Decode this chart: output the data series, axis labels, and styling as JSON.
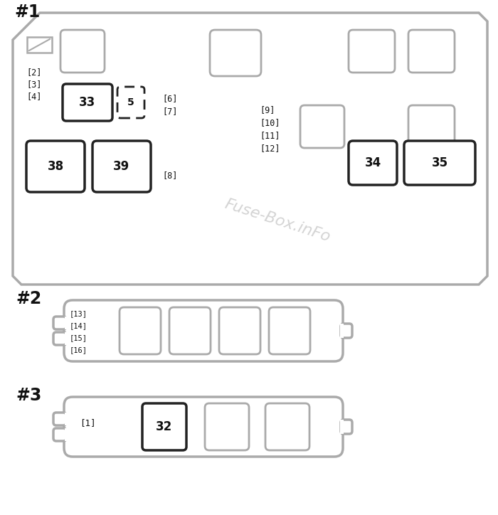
{
  "bg_color": "#ffffff",
  "outline_gray": "#aaaaaa",
  "outline_dark": "#222222",
  "text_color": "#111111",
  "watermark_color": "#cccccc",
  "watermark_text": "Fuse-Box.inFo",
  "s1_label": "#1",
  "s2_label": "#2",
  "s3_label": "#3",
  "fig_w": 7.0,
  "fig_h": 7.24,
  "dpi": 100
}
